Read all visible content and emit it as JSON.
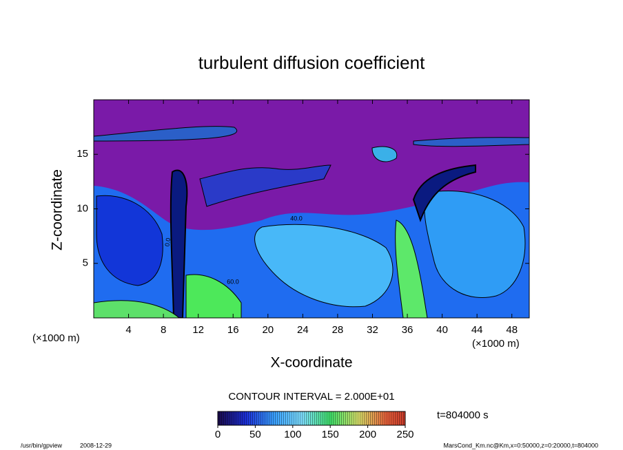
{
  "chart_data": {
    "type": "contour",
    "title": "turbulent diffusion coefficient",
    "x_label": "X-coordinate",
    "y_label": "Z-coordinate",
    "x_unit_left": "(×1000 m)",
    "x_unit_right": "(×1000 m)",
    "xlim": [
      0,
      50
    ],
    "xticks": [
      4,
      8,
      12,
      16,
      20,
      24,
      28,
      32,
      36,
      40,
      44,
      48
    ],
    "ylim": [
      0,
      20
    ],
    "yticks": [
      5,
      10,
      15
    ],
    "contour_labels": [
      "40.0",
      "60.0",
      "0.0"
    ],
    "contour_interval": "CONTOUR INTERVAL = 2.000E+01",
    "colorbar": {
      "lim": [
        0,
        250
      ],
      "ticks": [
        0,
        50,
        100,
        150,
        200,
        250
      ]
    },
    "time_label": "t=804000 s",
    "footer_program": "/usr/bin/gpview",
    "footer_date": "2008-12-29",
    "footer_source": "MarsCond_Km.nc@Km,x=0:50000,z=0:20000,t=804000"
  }
}
